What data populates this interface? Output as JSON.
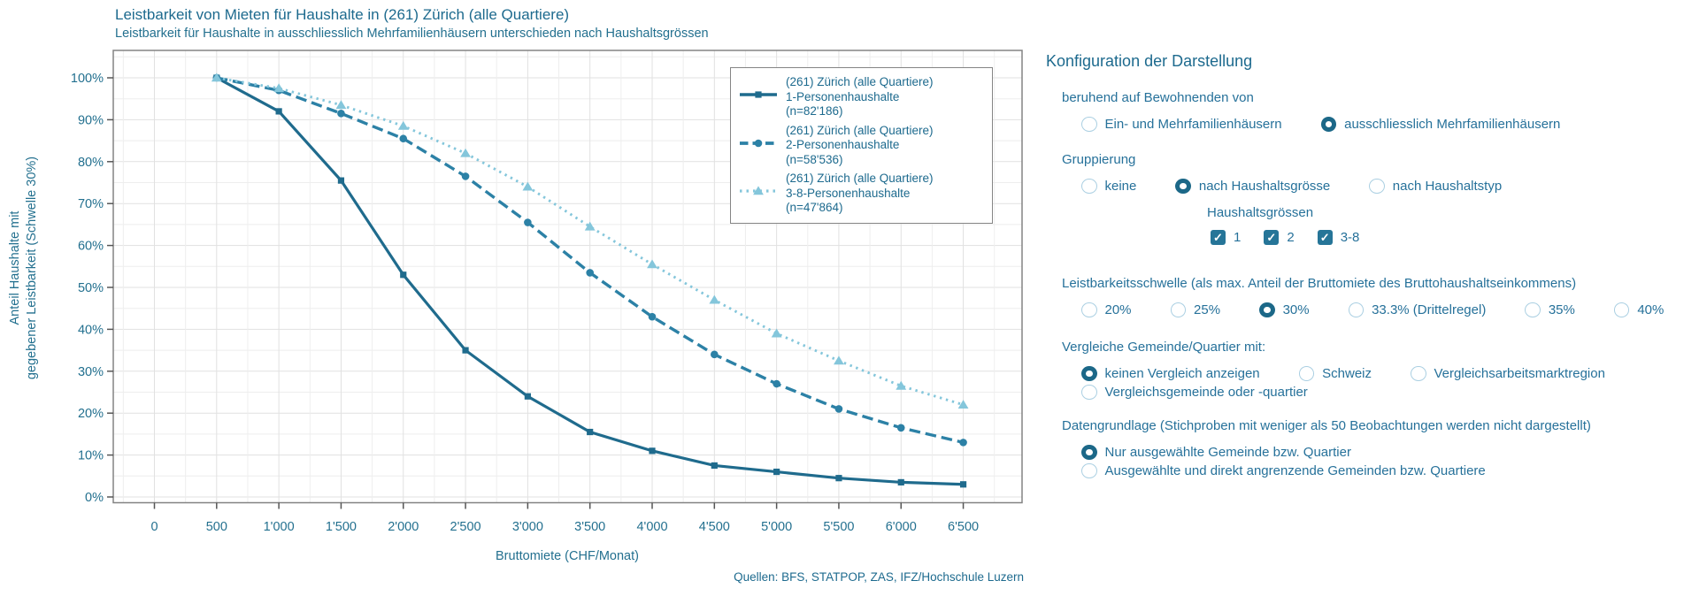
{
  "chart_data": {
    "type": "line",
    "title": "Leistbarkeit von Mieten für Haushalte in (261) Zürich (alle Quartiere)",
    "subtitle": "Leistbarkeit für Haushalte in ausschliesslich Mehrfamilienhäusern unterschieden nach Haushaltsgrössen",
    "xlabel": "Bruttomiete (CHF/Monat)",
    "ylabel": "Anteil Haushalte mit gegebener Leistbarkeit (Schwelle 30%)",
    "ylabel_lines": [
      "Anteil Haushalte mit",
      "gegebener Leistbarkeit (Schwelle 30%)"
    ],
    "source": "Quellen: BFS, STATPOP, ZAS, IFZ/Hochschule Luzern",
    "x": [
      500,
      1000,
      1500,
      2000,
      2500,
      3000,
      3500,
      4000,
      4500,
      5000,
      5500,
      6000,
      6500
    ],
    "x_ticks": [
      0,
      500,
      1000,
      1500,
      2000,
      2500,
      3000,
      3500,
      4000,
      4500,
      5000,
      5500,
      6000,
      6500
    ],
    "x_tick_labels": [
      "0",
      "500",
      "1'000",
      "1'500",
      "2'000",
      "2'500",
      "3'000",
      "3'500",
      "4'000",
      "4'500",
      "5'000",
      "5'500",
      "6'000",
      "6'500"
    ],
    "y_ticks": [
      "0%",
      "10%",
      "20%",
      "30%",
      "40%",
      "50%",
      "60%",
      "70%",
      "80%",
      "90%",
      "100%"
    ],
    "ylim": [
      0,
      100
    ],
    "grid": true,
    "legend_position": "upper right",
    "series": [
      {
        "legend_lines": [
          "(261) Zürich (alle Quartiere)",
          "1-Personenhaushalte",
          "(n=82'186)"
        ],
        "dash": "solid",
        "marker": "square",
        "color": "#1f6b8d",
        "values": [
          100,
          92,
          75.5,
          53,
          35,
          24,
          15.5,
          11,
          7.5,
          6,
          4.5,
          3.5,
          3
        ]
      },
      {
        "legend_lines": [
          "(261) Zürich (alle Quartiere)",
          "2-Personenhaushalte",
          "(n=58'536)"
        ],
        "dash": "dashed",
        "marker": "circle",
        "color": "#2c81a6",
        "values": [
          100,
          97,
          91.5,
          85.5,
          76.5,
          65.5,
          53.5,
          43,
          34,
          27,
          21,
          16.5,
          13
        ]
      },
      {
        "legend_lines": [
          "(261) Zürich (alle Quartiere)",
          "3-8-Personenhaushalte",
          "(n=47'864)"
        ],
        "dash": "dotted",
        "marker": "triangle",
        "color": "#84c6db",
        "values": [
          100,
          97.5,
          93.5,
          88.5,
          82,
          74,
          64.5,
          55.5,
          47,
          39,
          32.5,
          26.5,
          22
        ]
      }
    ]
  },
  "config": {
    "heading": "Konfiguration der Darstellung",
    "sections": [
      {
        "label": "beruhend auf Bewohnenden von",
        "rows": [
          {
            "type": "radio",
            "options": [
              {
                "label": "Ein- und Mehrfamilienhäusern",
                "selected": false
              },
              {
                "label": "ausschliesslich Mehrfamilienhäusern",
                "selected": true
              }
            ]
          }
        ]
      },
      {
        "label": "Gruppierung",
        "rows": [
          {
            "type": "radio",
            "options": [
              {
                "label": "keine",
                "selected": false
              },
              {
                "label": "nach Haushaltsgrösse",
                "selected": true
              },
              {
                "label": "nach Haushaltstyp",
                "selected": false
              }
            ]
          },
          {
            "type": "sublabel",
            "text": "Haushaltsgrössen"
          },
          {
            "type": "checkbox",
            "options": [
              {
                "label": "1",
                "checked": true
              },
              {
                "label": "2",
                "checked": true
              },
              {
                "label": "3-8",
                "checked": true
              }
            ]
          }
        ]
      },
      {
        "label": "Leistbarkeitsschwelle (als max. Anteil der Bruttomiete des Bruttohaushaltseinkommens)",
        "rows": [
          {
            "type": "radio",
            "options": [
              {
                "label": "20%",
                "selected": false
              },
              {
                "label": "25%",
                "selected": false
              },
              {
                "label": "30%",
                "selected": true
              },
              {
                "label": "33.3% (Drittelregel)",
                "selected": false
              },
              {
                "label": "35%",
                "selected": false
              },
              {
                "label": "40%",
                "selected": false
              }
            ]
          }
        ]
      },
      {
        "label": "Vergleiche Gemeinde/Quartier mit:",
        "rows": [
          {
            "type": "radio",
            "options": [
              {
                "label": "keinen Vergleich anzeigen",
                "selected": true
              },
              {
                "label": "Schweiz",
                "selected": false
              },
              {
                "label": "Vergleichsarbeitsmarktregion",
                "selected": false
              }
            ]
          },
          {
            "type": "radio",
            "options": [
              {
                "label": "Vergleichsgemeinde oder -quartier",
                "selected": false
              }
            ]
          }
        ]
      },
      {
        "label": "Datengrundlage (Stichproben mit weniger als 50 Beobachtungen werden nicht dargestellt)",
        "rows": [
          {
            "type": "radio",
            "options": [
              {
                "label": "Nur ausgewählte Gemeinde bzw. Quartier",
                "selected": true
              }
            ]
          },
          {
            "type": "radio",
            "options": [
              {
                "label": "Ausgewählte und direkt angrenzende Gemeinden bzw. Quartiere",
                "selected": false
              }
            ]
          }
        ]
      }
    ]
  }
}
